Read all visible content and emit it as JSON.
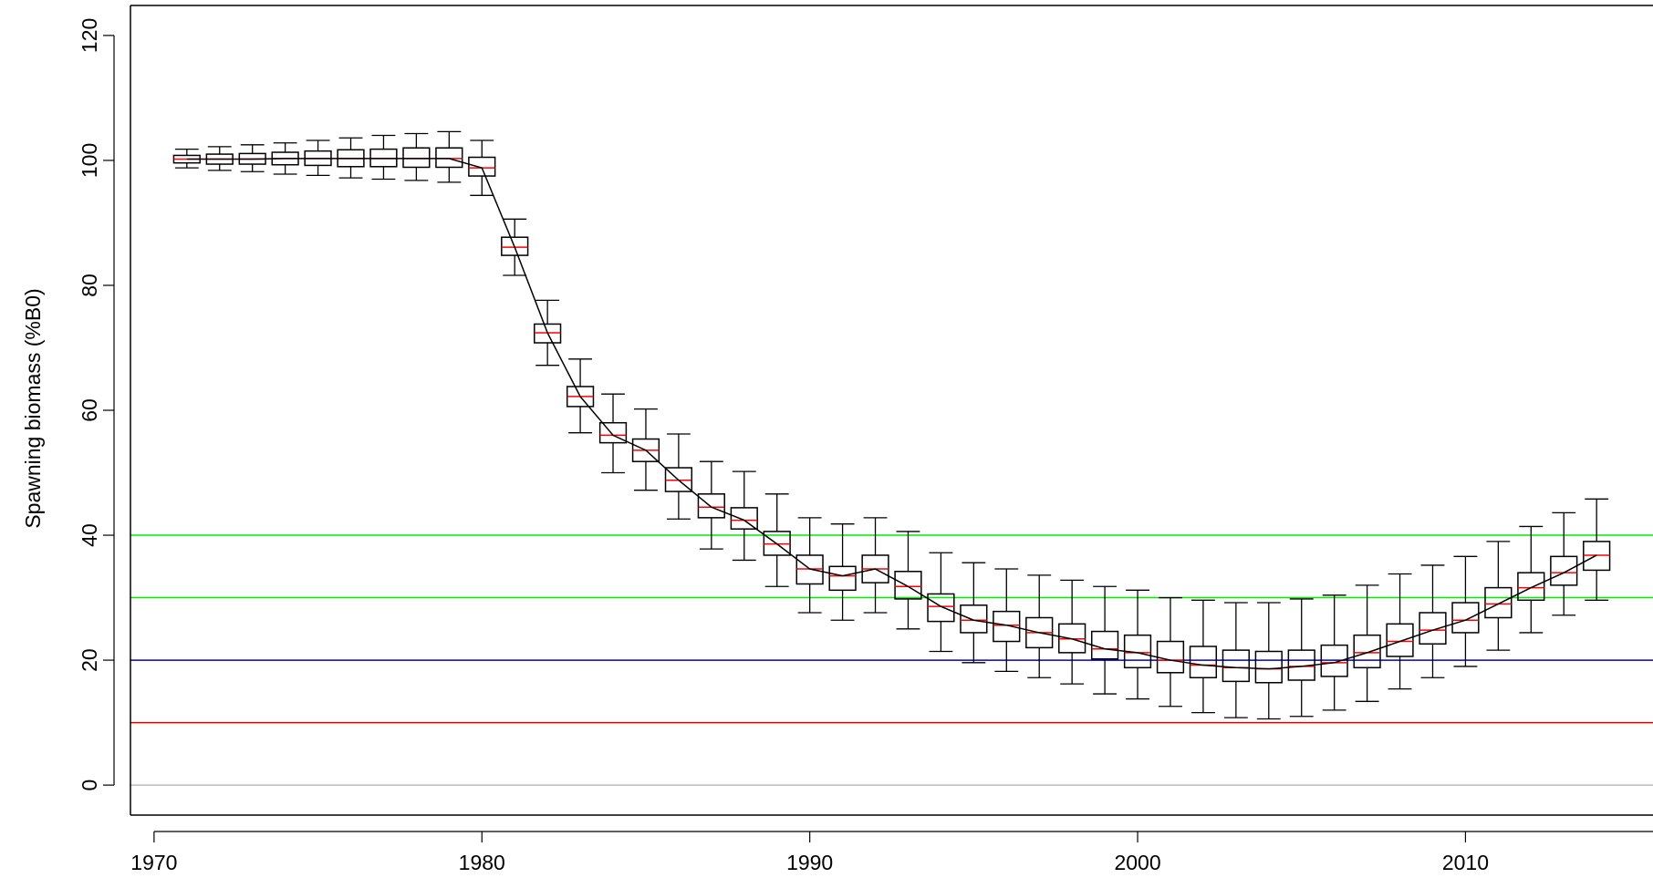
{
  "chart_data": {
    "type": "box",
    "y_label": "Spawning biomass (%B0)",
    "x": [
      1971,
      1972,
      1973,
      1974,
      1975,
      1976,
      1977,
      1978,
      1979,
      1980,
      1981,
      1982,
      1983,
      1984,
      1985,
      1986,
      1987,
      1988,
      1989,
      1990,
      1991,
      1992,
      1993,
      1994,
      1995,
      1996,
      1997,
      1998,
      1999,
      2000,
      2001,
      2002,
      2003,
      2004,
      2005,
      2006,
      2007,
      2008,
      2009,
      2010,
      2011,
      2012,
      2013,
      2014
    ],
    "median": [
      100.2,
      100.2,
      100.2,
      100.3,
      100.3,
      100.3,
      100.3,
      100.3,
      100.3,
      98.8,
      86.1,
      72.4,
      62.2,
      56.0,
      53.6,
      48.8,
      44.5,
      42.4,
      38.6,
      34.6,
      33.5,
      34.6,
      31.8,
      28.6,
      26.4,
      25.6,
      24.4,
      23.4,
      21.8,
      21.2,
      20.0,
      19.2,
      18.8,
      18.6,
      19.0,
      19.6,
      21.2,
      23.0,
      24.8,
      26.4,
      29.0,
      31.6,
      34.0,
      36.8
    ],
    "q1": [
      99.6,
      99.4,
      99.4,
      99.3,
      99.2,
      99.0,
      99.0,
      98.9,
      98.9,
      97.5,
      84.8,
      70.8,
      60.6,
      54.8,
      51.8,
      47.0,
      42.8,
      41.0,
      36.8,
      32.2,
      31.2,
      32.4,
      29.8,
      26.2,
      24.4,
      23.0,
      22.0,
      21.2,
      20.2,
      18.8,
      18.0,
      17.2,
      16.6,
      16.4,
      16.8,
      17.4,
      18.8,
      20.6,
      22.6,
      24.4,
      26.8,
      29.6,
      32.0,
      34.4
    ],
    "q3": [
      100.8,
      101.0,
      101.1,
      101.3,
      101.5,
      101.7,
      101.8,
      102.0,
      102.0,
      100.5,
      87.7,
      73.8,
      63.8,
      58.0,
      55.4,
      50.8,
      46.6,
      44.4,
      40.6,
      36.8,
      35.0,
      36.8,
      34.2,
      30.6,
      28.8,
      27.8,
      26.8,
      25.8,
      24.6,
      24.0,
      23.0,
      22.2,
      21.6,
      21.4,
      21.6,
      22.4,
      24.0,
      25.8,
      27.6,
      29.2,
      31.6,
      34.0,
      36.6,
      39.0
    ],
    "whisker_low": [
      98.8,
      98.4,
      98.2,
      97.8,
      97.6,
      97.2,
      97.0,
      96.8,
      96.5,
      94.4,
      81.6,
      67.2,
      56.4,
      50.0,
      47.2,
      42.6,
      37.8,
      36.0,
      31.8,
      27.6,
      26.4,
      27.6,
      25.0,
      21.4,
      19.6,
      18.2,
      17.2,
      16.2,
      14.6,
      13.8,
      12.6,
      11.6,
      10.8,
      10.6,
      11.0,
      12.0,
      13.4,
      15.4,
      17.2,
      19.0,
      21.6,
      24.4,
      27.2,
      29.6
    ],
    "whisker_high": [
      101.8,
      102.2,
      102.5,
      102.8,
      103.2,
      103.6,
      104.0,
      104.3,
      104.6,
      103.2,
      90.6,
      77.6,
      68.2,
      62.6,
      60.2,
      56.2,
      51.8,
      50.2,
      46.6,
      42.8,
      41.8,
      42.8,
      40.6,
      37.2,
      35.6,
      34.6,
      33.6,
      32.8,
      31.8,
      31.2,
      30.0,
      29.6,
      29.2,
      29.2,
      29.8,
      30.4,
      32.0,
      33.8,
      35.2,
      36.6,
      39.0,
      41.4,
      43.6,
      45.8
    ],
    "box_color": "#000000",
    "median_color": "#ff0000",
    "line_color": "#000000",
    "hlines": [
      {
        "value": 40,
        "color": "#00ee00"
      },
      {
        "value": 30,
        "color": "#00ee00"
      },
      {
        "value": 20,
        "color": "#0000cc"
      },
      {
        "value": 10,
        "color": "#dd0000"
      },
      {
        "value": 0,
        "color": "#bbbbbb"
      }
    ],
    "xlim": [
      1969.28,
      2015.72
    ],
    "ylim": [
      -4.8,
      124.8
    ],
    "xticks": [
      1970,
      1980,
      1990,
      2000,
      2010
    ],
    "yticks": [
      0,
      20,
      40,
      60,
      80,
      100,
      120
    ]
  }
}
